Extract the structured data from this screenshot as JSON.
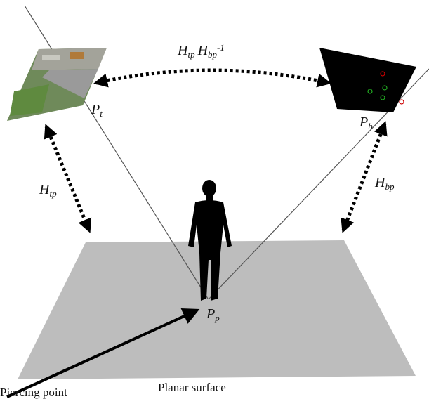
{
  "labels": {
    "top_relation": [
      {
        "base": "H",
        "sub": "tp"
      },
      {
        "base": "H",
        "sub": "bp",
        "sup": "-1"
      }
    ],
    "p_t": {
      "base": "P",
      "sub": "t"
    },
    "p_b": {
      "base": "P",
      "sub": "b"
    },
    "h_tp": {
      "base": "H",
      "sub": "tp"
    },
    "h_bp": {
      "base": "H",
      "sub": "bp"
    },
    "p_p": {
      "base": "P",
      "sub": "p"
    }
  },
  "captions": {
    "piercing_point": "Piercing point",
    "planar_surface": "Planar surface"
  }
}
